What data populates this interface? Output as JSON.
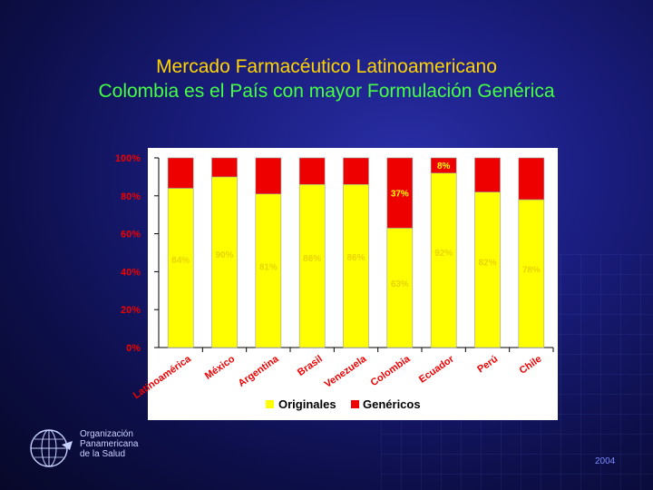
{
  "slide": {
    "title": "Mercado Farmacéutico Latinoamericano",
    "subtitle": "Colombia es el País con mayor Formulación Genérica",
    "organization_lines": [
      "Organización",
      "Panamericana",
      "de la Salud"
    ],
    "year": "2004"
  },
  "colors": {
    "originales": "#ffff00",
    "genericos": "#ee0000",
    "label_on_yellow": "#e8d400",
    "label_on_red": "#ffff00",
    "label_top": "#ee0000",
    "axis_text": "#ee0000",
    "category_text": "#ee0000"
  },
  "chart_data": {
    "type": "bar",
    "stacked": true,
    "categories": [
      "Latinoamérica",
      "México",
      "Argentina",
      "Brasil",
      "Venezuela",
      "Colombia",
      "Ecuador",
      "Perú",
      "Chile"
    ],
    "series": [
      {
        "name": "Originales",
        "values": [
          84,
          90,
          81,
          86,
          86,
          63,
          92,
          82,
          78
        ]
      },
      {
        "name": "Genéricos",
        "values": [
          16,
          10,
          19,
          14,
          14,
          37,
          8,
          18,
          22
        ]
      }
    ],
    "ylim": [
      0,
      100
    ],
    "yticks": [
      "0%",
      "20%",
      "40%",
      "60%",
      "80%",
      "100%"
    ],
    "ytick_values": [
      0,
      20,
      40,
      60,
      80,
      100
    ],
    "legend": [
      "Originales",
      "Genéricos"
    ],
    "legend_position": "bottom",
    "grid": false
  }
}
